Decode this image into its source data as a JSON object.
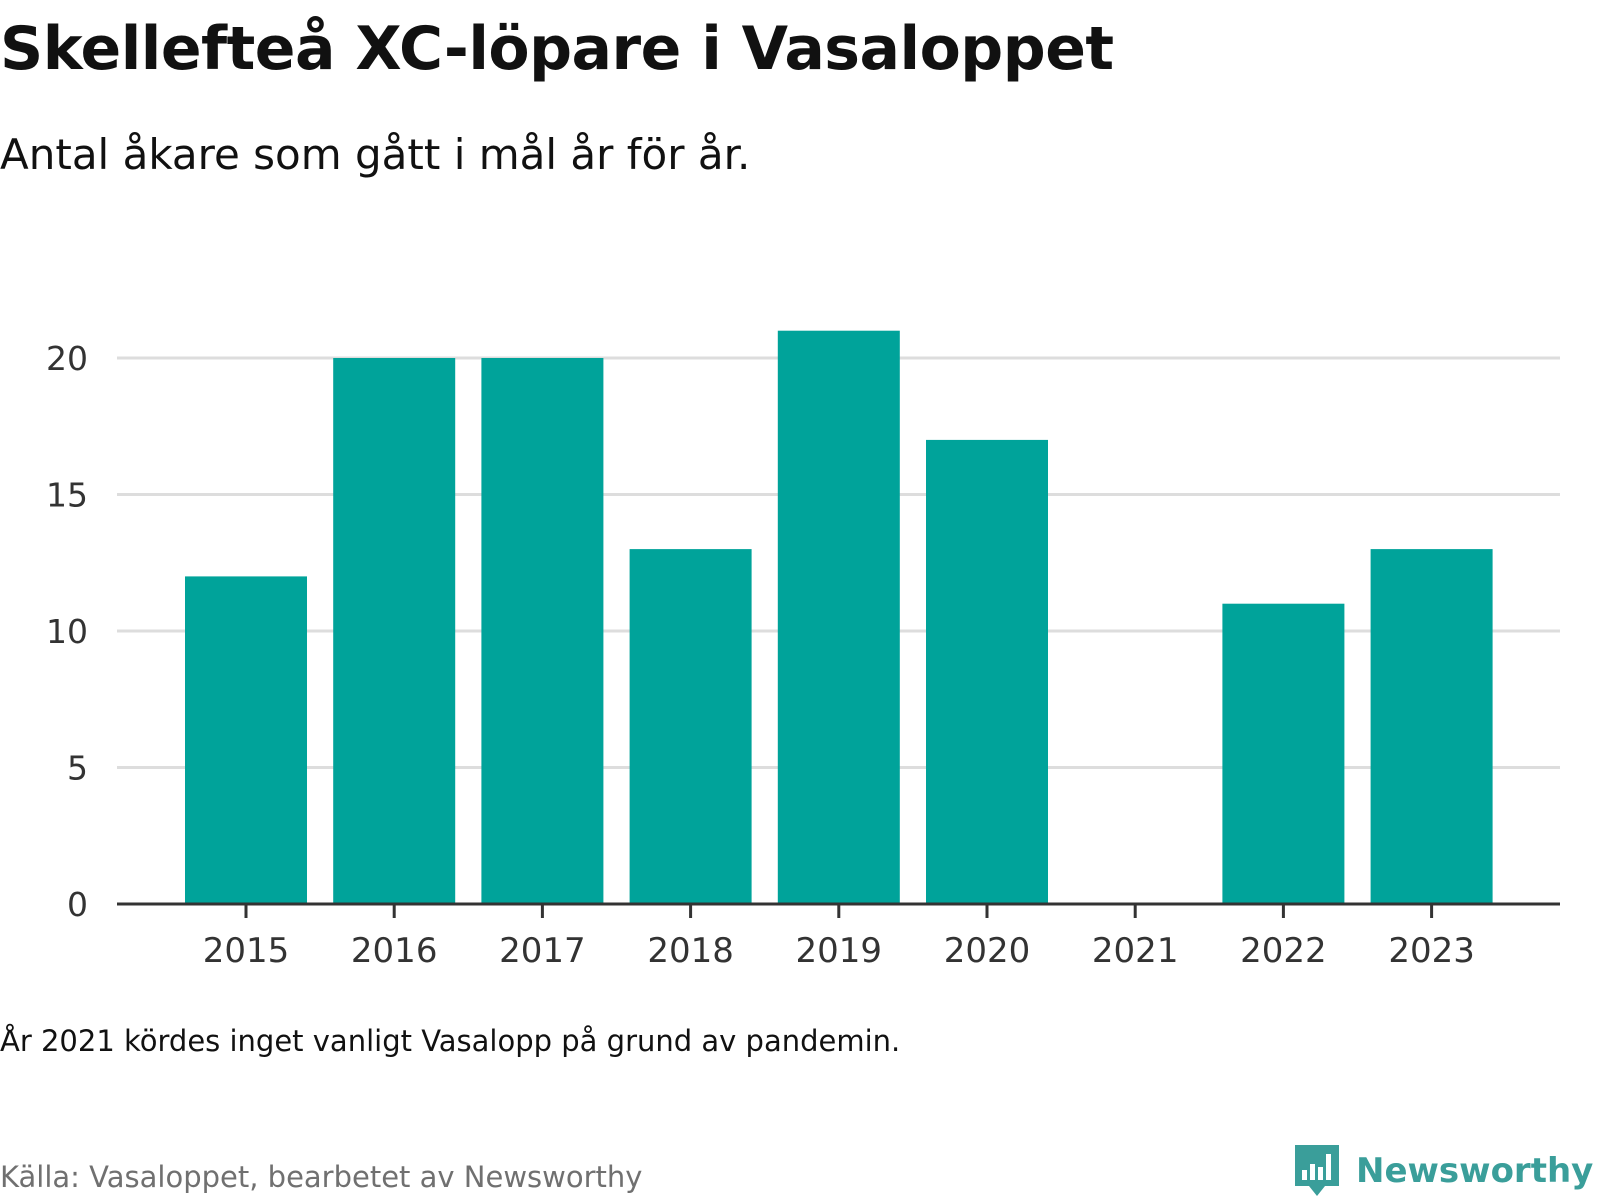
{
  "header": {
    "title": "Skellefteå XC-löpare i Vasaloppet",
    "subtitle": "Antal åkare som gått i mål år för år."
  },
  "footer": {
    "note": "År 2021 kördes inget vanligt Vasalopp på grund av pandemin.",
    "source": "Källa: Vasaloppet, bearbetet av Newsworthy",
    "logo_text": "Newsworthy",
    "logo_icon": "newsworthy-chart-logo-icon"
  },
  "colors": {
    "bar": "#00A39A",
    "grid": "#dddddd",
    "axis": "#333333",
    "logo": "#3a9e9a"
  },
  "chart_data": {
    "type": "bar",
    "title": "Skellefteå XC-löpare i Vasaloppet",
    "subtitle": "Antal åkare som gått i mål år för år.",
    "categories": [
      "2015",
      "2016",
      "2017",
      "2018",
      "2019",
      "2020",
      "2021",
      "2022",
      "2023"
    ],
    "values": [
      12,
      20,
      20,
      13,
      21,
      17,
      0,
      11,
      13
    ],
    "ylim": [
      0,
      22
    ],
    "yticks": [
      0,
      5,
      10,
      15,
      20
    ],
    "grid": true,
    "legend": "none"
  }
}
